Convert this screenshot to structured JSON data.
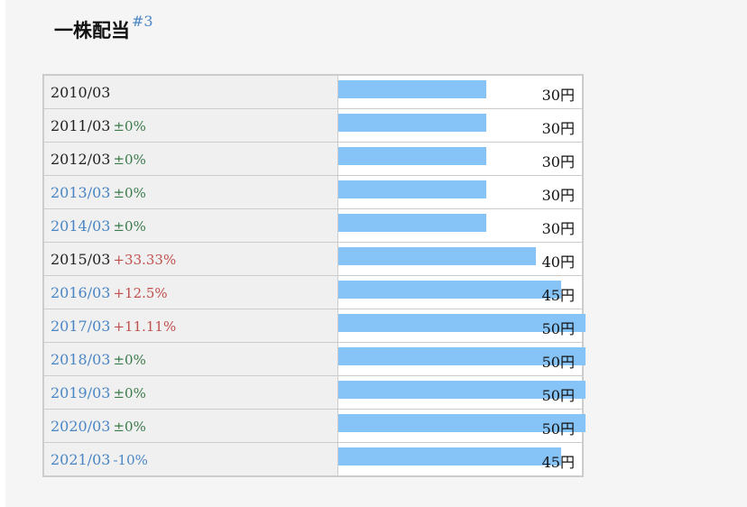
{
  "header": {
    "title": "一株配当",
    "footnote": "#3"
  },
  "colors": {
    "bar": "#86c4f8",
    "link": "#4a86c5",
    "zero": "#3a7a4a",
    "up": "#c0504d"
  },
  "chart_data": {
    "type": "bar",
    "orientation": "horizontal",
    "unit": "円",
    "rows": [
      {
        "year": "2010/03",
        "change": "",
        "change_kind": "",
        "link": false,
        "value": 30,
        "label": "30円"
      },
      {
        "year": "2011/03",
        "change": "±0%",
        "change_kind": "zero",
        "link": false,
        "value": 30,
        "label": "30円"
      },
      {
        "year": "2012/03",
        "change": "±0%",
        "change_kind": "zero",
        "link": false,
        "value": 30,
        "label": "30円"
      },
      {
        "year": "2013/03",
        "change": "±0%",
        "change_kind": "zero",
        "link": true,
        "value": 30,
        "label": "30円"
      },
      {
        "year": "2014/03",
        "change": "±0%",
        "change_kind": "zero",
        "link": true,
        "value": 30,
        "label": "30円"
      },
      {
        "year": "2015/03",
        "change": "+33.33%",
        "change_kind": "up",
        "link": false,
        "value": 40,
        "label": "40円"
      },
      {
        "year": "2016/03",
        "change": "+12.5%",
        "change_kind": "up",
        "link": true,
        "value": 45,
        "label": "45円"
      },
      {
        "year": "2017/03",
        "change": "+11.11%",
        "change_kind": "up",
        "link": true,
        "value": 50,
        "label": "50円"
      },
      {
        "year": "2018/03",
        "change": "±0%",
        "change_kind": "zero",
        "link": true,
        "value": 50,
        "label": "50円"
      },
      {
        "year": "2019/03",
        "change": "±0%",
        "change_kind": "zero",
        "link": true,
        "value": 50,
        "label": "50円"
      },
      {
        "year": "2020/03",
        "change": "±0%",
        "change_kind": "zero",
        "link": true,
        "value": 50,
        "label": "50円"
      },
      {
        "year": "2021/03",
        "change": "-10%",
        "change_kind": "down",
        "link": true,
        "value": 45,
        "label": "45円"
      }
    ],
    "max_value": 50
  }
}
